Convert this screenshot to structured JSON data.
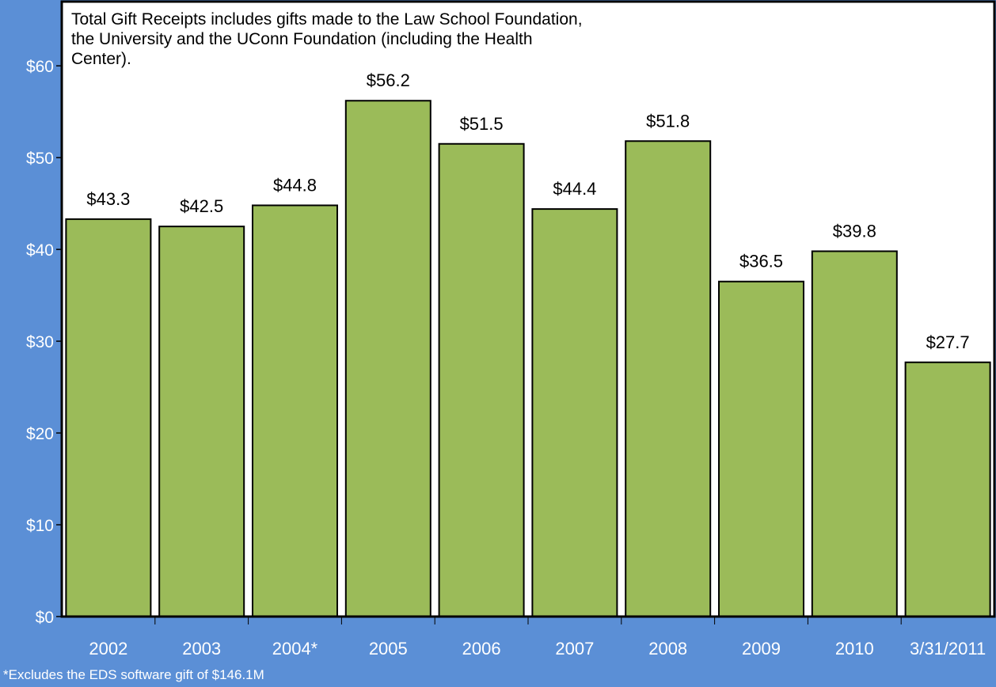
{
  "chart_data": {
    "type": "bar",
    "categories": [
      "2002",
      "2003",
      "2004*",
      "2005",
      "2006",
      "2007",
      "2008",
      "2009",
      "2010",
      "3/31/2011"
    ],
    "values": [
      43.3,
      42.5,
      44.8,
      56.2,
      51.5,
      44.4,
      51.8,
      36.5,
      39.8,
      27.7
    ],
    "value_labels": [
      "$43.3",
      "$42.5",
      "$44.8",
      "$56.2",
      "$51.5",
      "$44.4",
      "$51.8",
      "$36.5",
      "$39.8",
      "$27.7"
    ],
    "y_ticks": [
      0,
      10,
      20,
      30,
      40,
      50,
      60
    ],
    "y_tick_labels": [
      "$0",
      "$10",
      "$20",
      "$30",
      "$40",
      "$50",
      "$60"
    ],
    "ylim": [
      0,
      67
    ],
    "title": "",
    "xlabel": "",
    "ylabel": "",
    "grid": false,
    "annotation": "Total Gift Receipts includes gifts made to the Law School Foundation, the University and the UConn Foundation (including the Health Center).",
    "footnote": "*Excludes the EDS software gift of $146.1M"
  },
  "colors": {
    "background": "#5b8fd6",
    "plot_area": "#ffffff",
    "bar_fill": "#9bbb59",
    "bar_stroke": "#000000",
    "axis_text": "#ffffff",
    "label_text": "#000000"
  }
}
